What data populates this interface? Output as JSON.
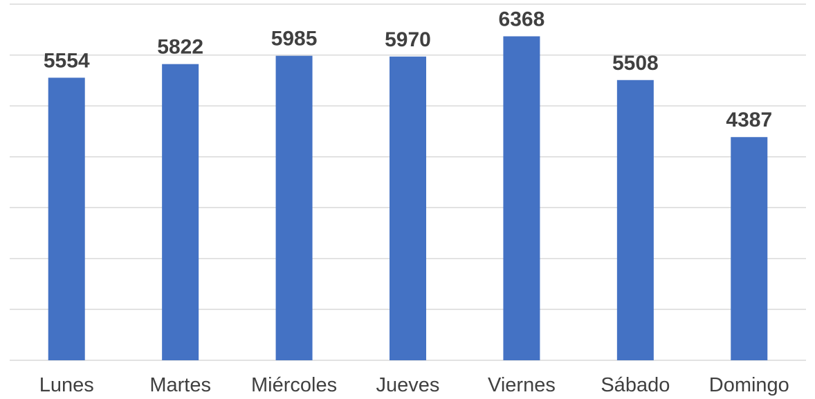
{
  "chart_data": {
    "type": "bar",
    "title": "",
    "xlabel": "",
    "ylabel": "",
    "categories": [
      "Lunes",
      "Martes",
      "Miércoles",
      "Jueves",
      "Viernes",
      "Sábado",
      "Domingo"
    ],
    "values": [
      5554,
      5822,
      5985,
      5970,
      6368,
      5508,
      4387
    ],
    "ylim": [
      0,
      7000
    ],
    "y_major_step": 1000,
    "y_tick_labels_visible": false,
    "grid": true,
    "data_labels": true,
    "legend": "none",
    "colors": {
      "bar": "#4472c4",
      "gridline": "#d9d9d9",
      "text": "#404040"
    }
  }
}
